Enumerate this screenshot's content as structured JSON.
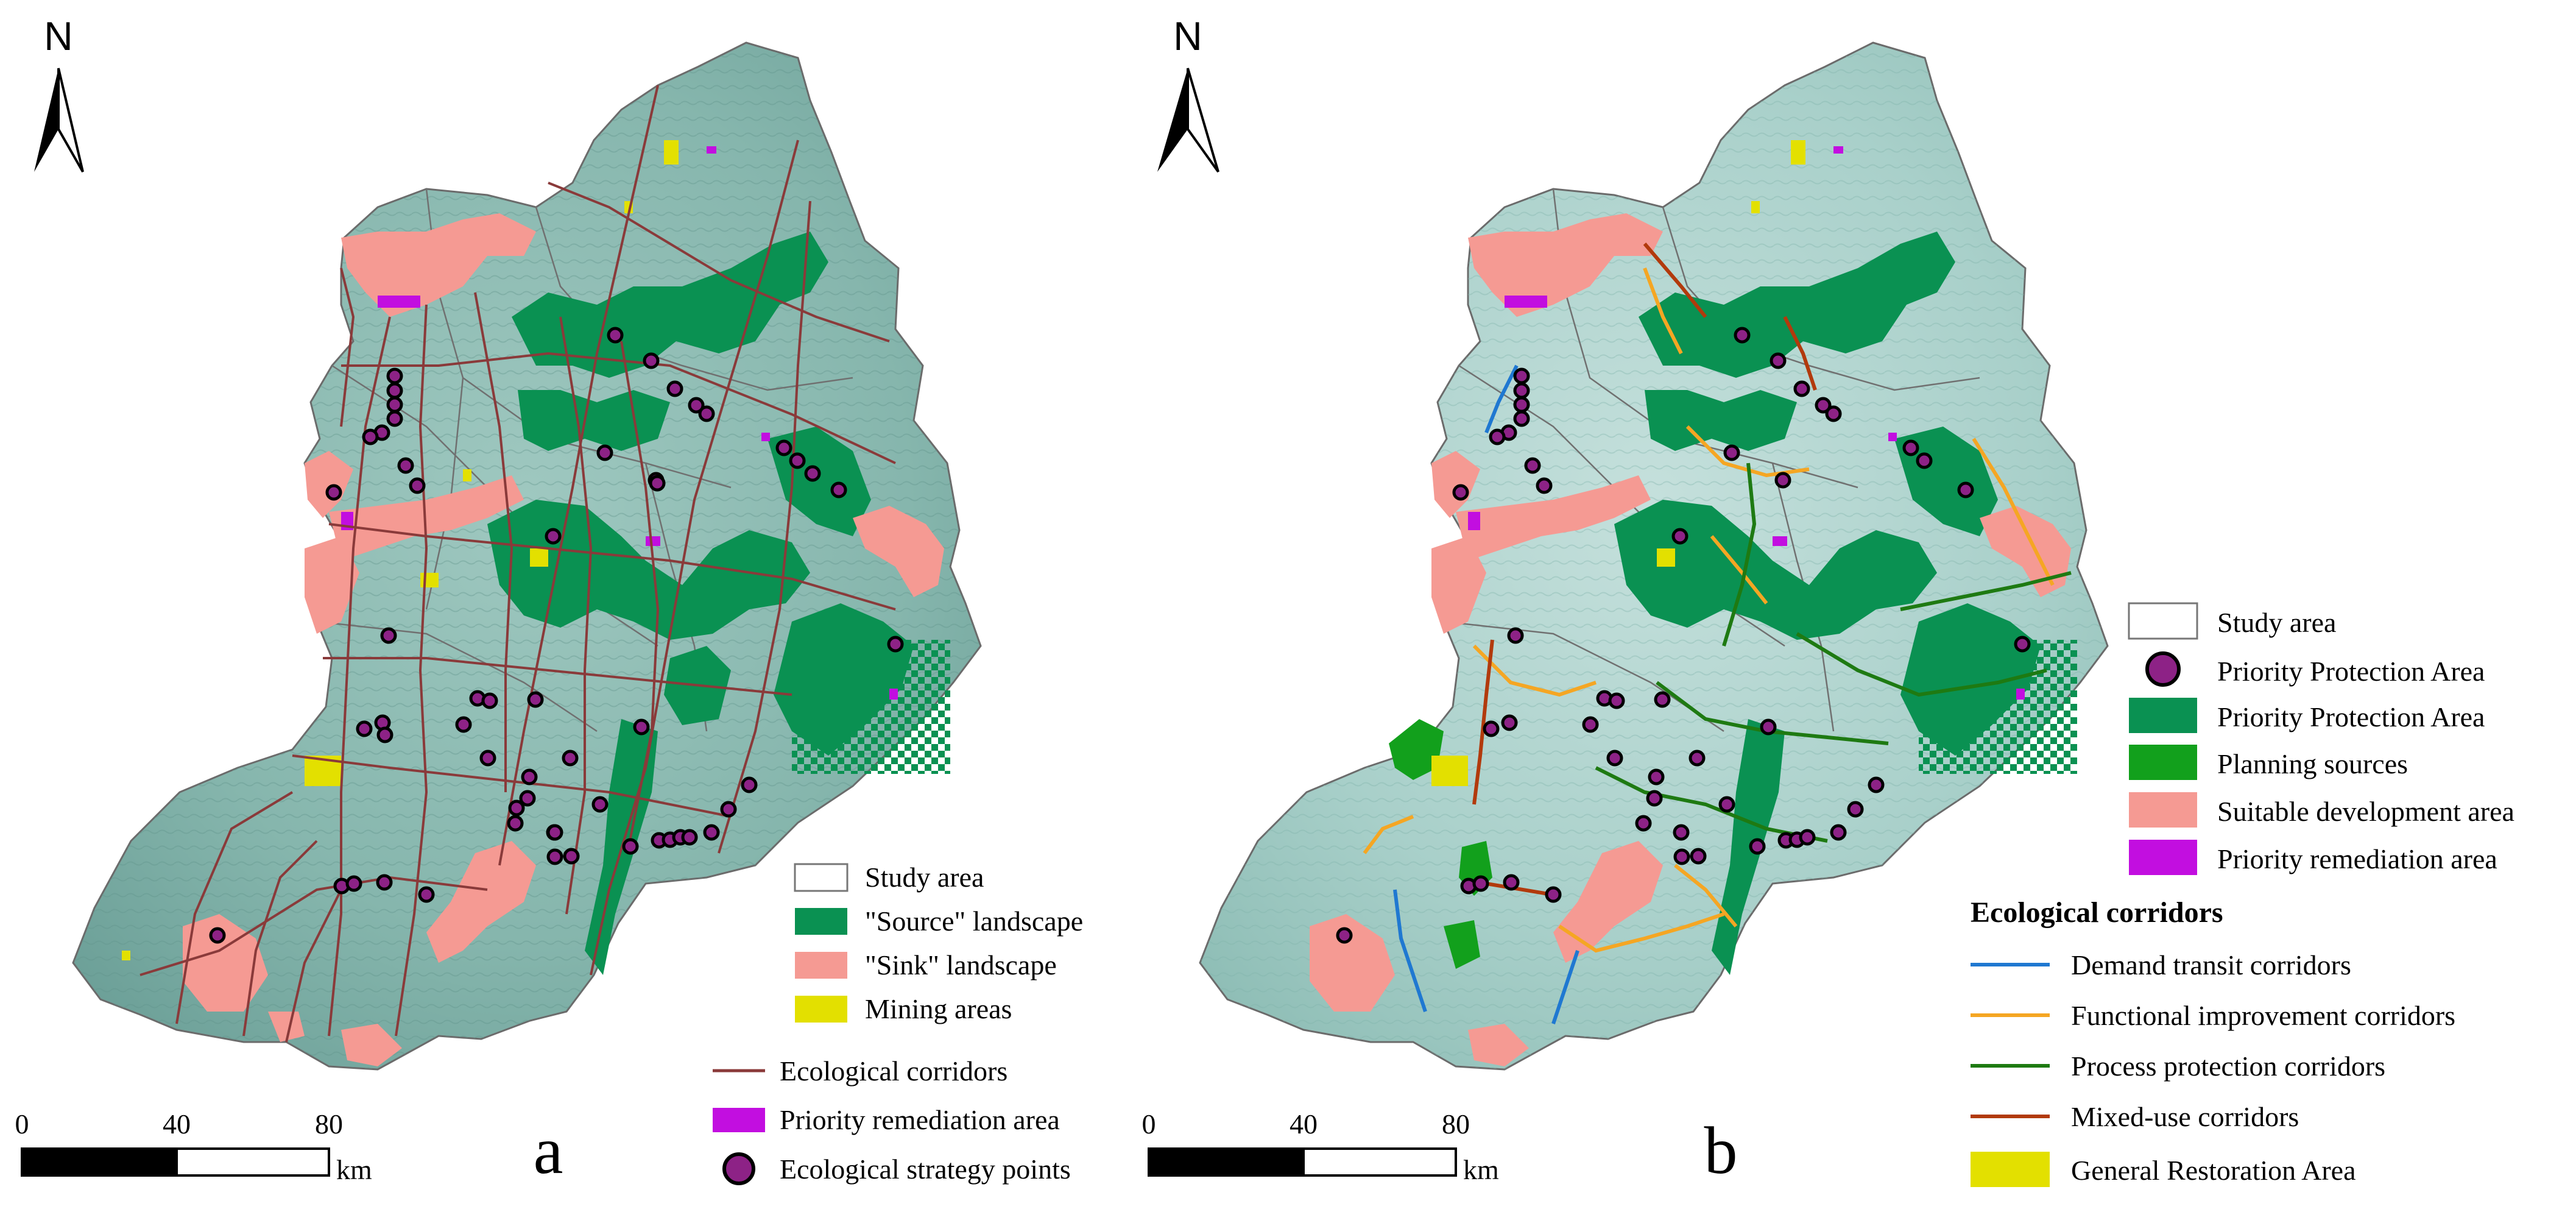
{
  "north_label": "N",
  "panels": [
    {
      "id": "a",
      "letter": "a",
      "scale": {
        "ticks": [
          "0",
          "40",
          "80"
        ],
        "unit": "km"
      },
      "legend": [
        {
          "label": "Study area",
          "swatch": "outline",
          "color": "#ffffff"
        },
        {
          "label": "\"Source\" landscape",
          "swatch": "fill",
          "color": "#0a9152"
        },
        {
          "label": "\"Sink\" landscape",
          "swatch": "fill",
          "color": "#f59a93"
        },
        {
          "label": "Mining areas",
          "swatch": "fill",
          "color": "#e3e000"
        },
        {
          "label": "Ecological corridors",
          "swatch": "line",
          "color": "#8a3a3a"
        },
        {
          "label": "Priority remediation area",
          "swatch": "fill",
          "color": "#c20ee0"
        },
        {
          "label": "Ecological strategy points",
          "swatch": "circle",
          "color": "#8d2286"
        }
      ]
    },
    {
      "id": "b",
      "letter": "b",
      "scale": {
        "ticks": [
          "0",
          "40",
          "80"
        ],
        "unit": "km"
      },
      "legend": [
        {
          "label": "Study area",
          "swatch": "outline",
          "color": "#ffffff"
        },
        {
          "label": "Priority Protection Area",
          "swatch": "circle",
          "color": "#8d2286"
        },
        {
          "label": "Priority Protection Area",
          "swatch": "fill",
          "color": "#0a9152"
        },
        {
          "label": "Planning sources",
          "swatch": "fill",
          "color": "#12a01c"
        },
        {
          "label": "Suitable development area",
          "swatch": "fill",
          "color": "#f59a93"
        },
        {
          "label": "Priority remediation area",
          "swatch": "fill",
          "color": "#c20ee0"
        }
      ],
      "corridor_title": "Ecological corridors",
      "corridor_legend": [
        {
          "label": "Demand transit corridors",
          "swatch": "line",
          "color": "#1f78d1"
        },
        {
          "label": "Functional improvement corridors",
          "swatch": "line",
          "color": "#f5a623"
        },
        {
          "label": "Process protection corridors",
          "swatch": "line",
          "color": "#1e7a12"
        },
        {
          "label": "Mixed-use corridors",
          "swatch": "line",
          "color": "#b23a0c"
        },
        {
          "label": "General Restoration Area",
          "swatch": "fill",
          "color": "#e3e000"
        }
      ]
    }
  ]
}
